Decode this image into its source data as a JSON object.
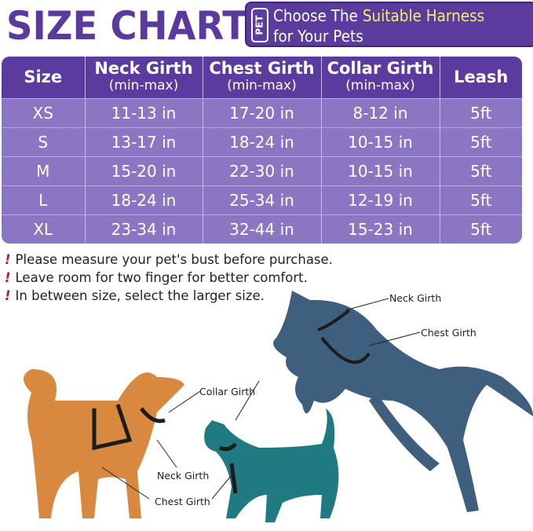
{
  "title": "SIZE CHART",
  "banner": {
    "badge": "PET",
    "line1_prefix": "Choose The ",
    "line1_highlight": "Suitable Harness",
    "line2": "for Your Pets"
  },
  "table": {
    "headers": [
      {
        "label": "Size",
        "sub": ""
      },
      {
        "label": "Neck Girth",
        "sub": "(min-max)"
      },
      {
        "label": "Chest Girth",
        "sub": "(min-max)"
      },
      {
        "label": "Collar Girth",
        "sub": "(min-max)"
      },
      {
        "label": "Leash",
        "sub": ""
      }
    ],
    "rows": [
      [
        "XS",
        "11-13 in",
        "17-20 in",
        "8-12 in",
        "5ft"
      ],
      [
        "S",
        "13-17 in",
        "18-24 in",
        "10-15 in",
        "5ft"
      ],
      [
        "M",
        "15-20 in",
        "22-30 in",
        "10-15 in",
        "5ft"
      ],
      [
        "L",
        "18-24 in",
        "25-34 in",
        "12-19 in",
        "5ft"
      ],
      [
        "XL",
        "23-34 in",
        "32-44 in",
        "15-23 in",
        "5ft"
      ]
    ]
  },
  "notes": [
    "Please measure your pet's bust before purchase.",
    "Leave room for two finger for better comfort.",
    "In between size, select the larger size."
  ],
  "labels": {
    "horse_neck": "Neck Girth",
    "horse_chest": "Chest Girth",
    "cat_collar": "Collar Girth",
    "dog_neck": "Neck Girth",
    "dog_chest": "Chest Girth"
  },
  "colors": {
    "purple": "#5b3b9e",
    "row": "#8b76c3",
    "highlight": "#f6ef6b",
    "warning": "#c0151f",
    "dog": "#d9893f",
    "cat": "#1f7a82",
    "horse": "#3f5f7e"
  }
}
